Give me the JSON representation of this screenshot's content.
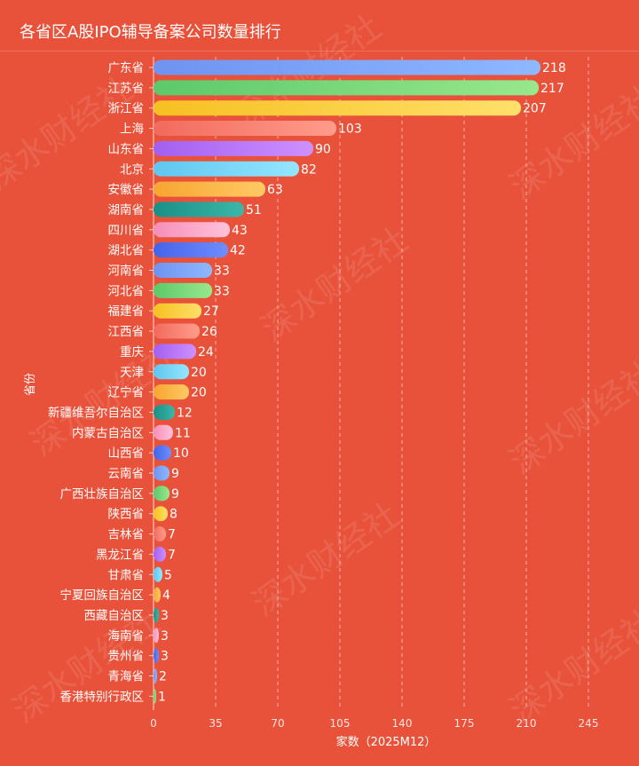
{
  "title": "各省区A股IPO辅导备案公司数量排行",
  "watermark": "深水财经社",
  "chart_data": {
    "type": "bar",
    "orientation": "horizontal",
    "title": "各省区A股IPO辅导备案公司数量排行",
    "xlabel": "家数（2025M12）",
    "ylabel": "省份",
    "xlim": [
      0,
      280
    ],
    "xticks": [
      0,
      35,
      70,
      105,
      140,
      175,
      210,
      245
    ],
    "grid": "vertical dashed",
    "categories": [
      "广东省",
      "江苏省",
      "浙江省",
      "上海",
      "山东省",
      "北京",
      "安徽省",
      "湖南省",
      "四川省",
      "湖北省",
      "河南省",
      "河北省",
      "福建省",
      "江西省",
      "重庆",
      "天津",
      "辽宁省",
      "新疆维吾尔自治区",
      "内蒙古自治区",
      "山西省",
      "云南省",
      "广西壮族自治区",
      "陕西省",
      "吉林省",
      "黑龙江省",
      "甘肃省",
      "宁夏回族自治区",
      "西藏自治区",
      "海南省",
      "贵州省",
      "青海省",
      "香港特别行政区"
    ],
    "values": [
      218,
      217,
      207,
      103,
      90,
      82,
      63,
      51,
      43,
      42,
      33,
      33,
      27,
      26,
      24,
      20,
      20,
      12,
      11,
      10,
      9,
      9,
      8,
      7,
      7,
      5,
      4,
      3,
      3,
      3,
      2,
      1
    ],
    "colors": [
      [
        "#6f93f0",
        "#8eb8ff"
      ],
      [
        "#5cc96a",
        "#98e88c"
      ],
      [
        "#f6c021",
        "#ffe06a"
      ],
      [
        "#f26a5c",
        "#ff9c8c"
      ],
      [
        "#a25ff0",
        "#cf90ff"
      ],
      [
        "#5fc6ef",
        "#95e6ff"
      ],
      [
        "#f7a531",
        "#ffc964"
      ],
      [
        "#1a8f86",
        "#3bb7a8"
      ],
      [
        "#f58fb8",
        "#ffc2da"
      ],
      [
        "#4563e8",
        "#6e8dff"
      ]
    ]
  }
}
